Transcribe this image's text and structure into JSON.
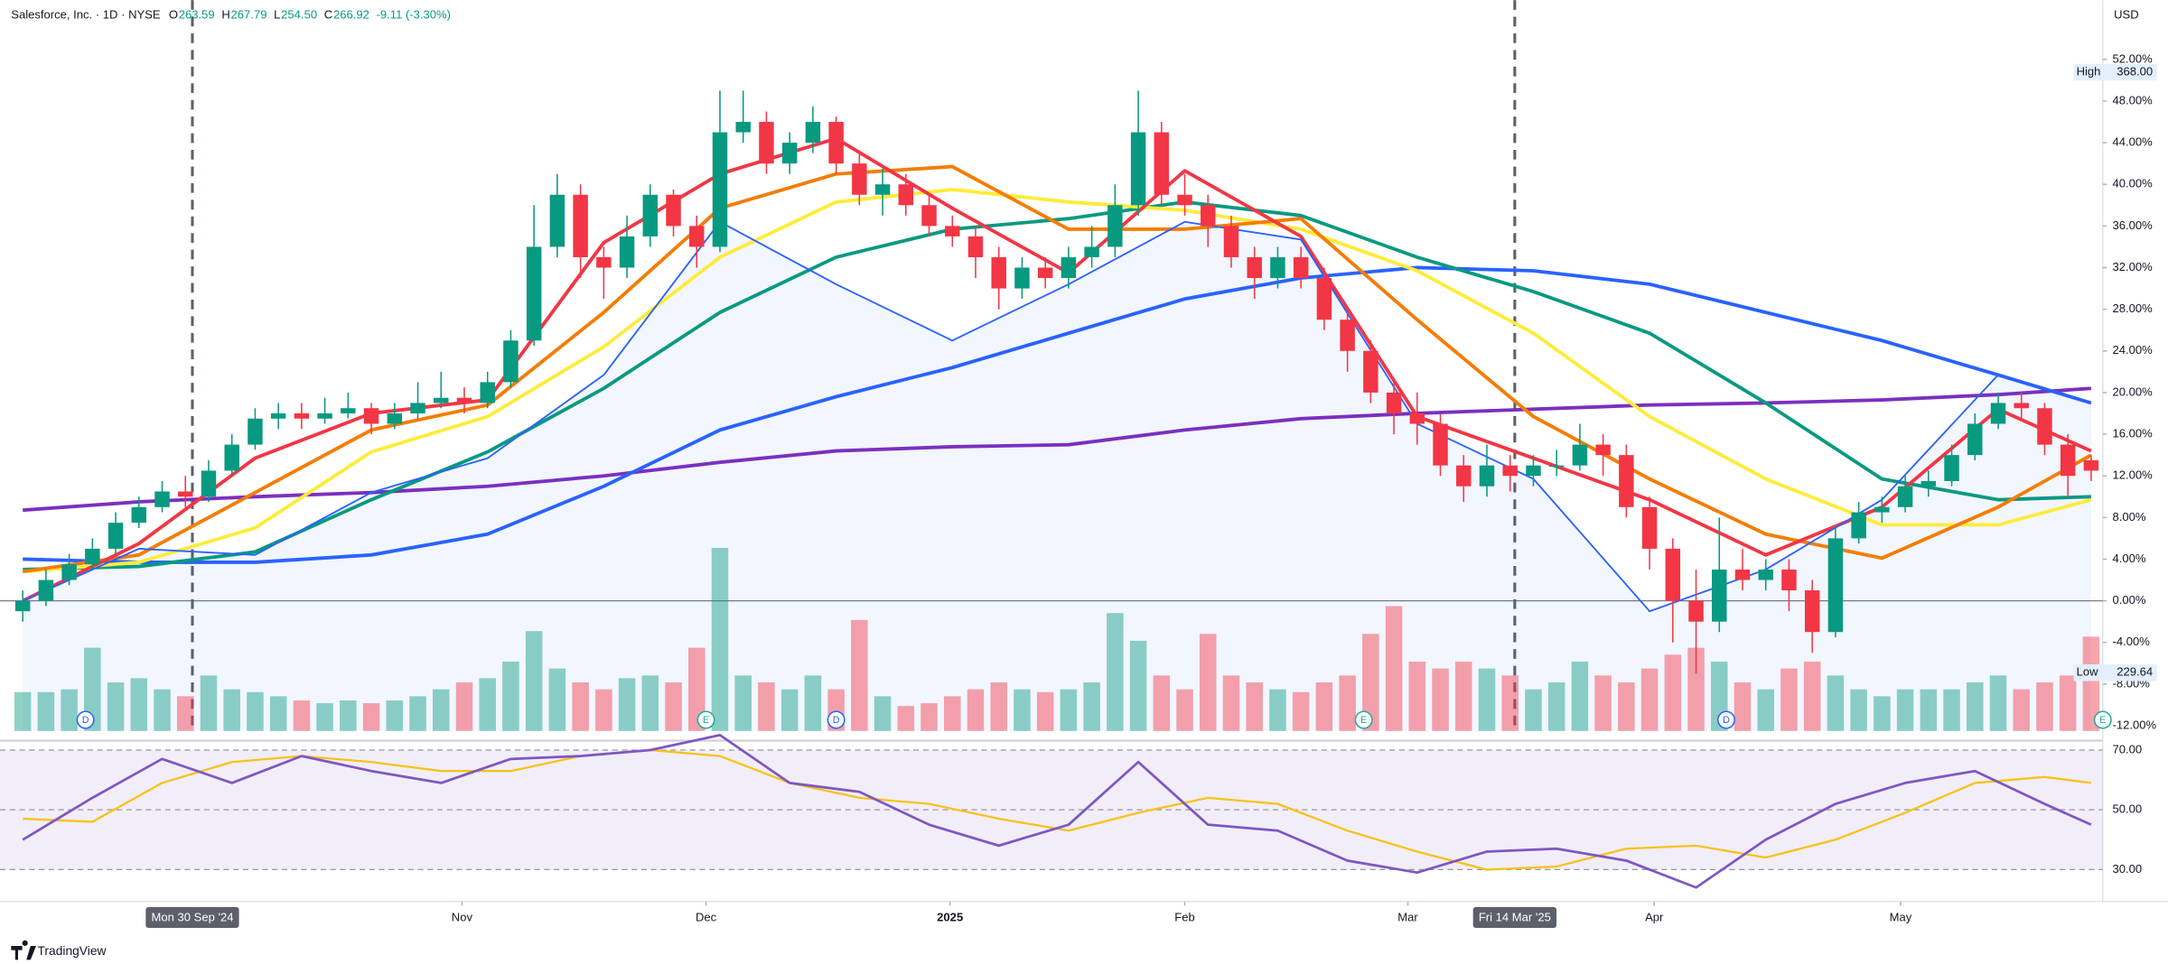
{
  "chart_data": {
    "type": "candlestick",
    "header": {
      "symbol": "Salesforce, Inc. · 1D · NYSE",
      "fields": [
        {
          "label": "O",
          "value": "263.59"
        },
        {
          "label": "H",
          "value": "267.79"
        },
        {
          "label": "L",
          "value": "254.50"
        },
        {
          "label": "C",
          "value": "266.92"
        }
      ],
      "change": "-9.11 (-3.30%)"
    },
    "currency": "USD",
    "high_label": {
      "label": "High",
      "value": "368.00"
    },
    "low_label": {
      "label": "Low",
      "value": "229.64"
    },
    "up_color": "#089981",
    "down_color": "#f23645",
    "ylim": [
      -12.5,
      57.7
    ],
    "yticks": [
      {
        "value": 52,
        "label": "52.00%"
      },
      {
        "value": 48,
        "label": "48.00%"
      },
      {
        "value": 44,
        "label": "44.00%"
      },
      {
        "value": 40,
        "label": "40.00%"
      },
      {
        "value": 36,
        "label": "36.00%"
      },
      {
        "value": 32,
        "label": "32.00%"
      },
      {
        "value": 28,
        "label": "28.00%"
      },
      {
        "value": 24,
        "label": "24.00%"
      },
      {
        "value": 20,
        "label": "20.00%"
      },
      {
        "value": 16,
        "label": "16.00%"
      },
      {
        "value": 12,
        "label": "12.00%"
      },
      {
        "value": 8,
        "label": "8.00%"
      },
      {
        "value": 4,
        "label": "4.00%"
      },
      {
        "value": 0,
        "label": "0.00%"
      },
      {
        "value": -4,
        "label": "-4.00%"
      },
      {
        "value": -8,
        "label": "-8.00%"
      },
      {
        "value": -12,
        "label": "-12.00%"
      }
    ],
    "xlim": [
      -0.5,
      89.5
    ],
    "xticks": [
      {
        "value": 7.3,
        "label": "Mon 30 Sep '24",
        "highlight": true
      },
      {
        "value": 18.9,
        "label": "Nov"
      },
      {
        "value": 29.4,
        "label": "Dec"
      },
      {
        "value": 39.9,
        "label": "2025"
      },
      {
        "value": 50,
        "label": "Feb"
      },
      {
        "value": 59.6,
        "label": "Mar"
      },
      {
        "value": 64.2,
        "label": "Fri 14 Mar '25",
        "highlight": true
      },
      {
        "value": 70.2,
        "label": "Apr"
      },
      {
        "value": 80.8,
        "label": "May"
      }
    ],
    "ohlc": [
      [
        -1,
        1,
        -2,
        0
      ],
      [
        0,
        3,
        -0.5,
        2
      ],
      [
        2,
        4.5,
        1.5,
        3.5
      ],
      [
        3.5,
        6,
        3,
        5
      ],
      [
        5,
        8.5,
        4.5,
        7.5
      ],
      [
        7.5,
        10,
        7,
        9
      ],
      [
        9,
        11.5,
        8.5,
        10.5
      ],
      [
        10.5,
        12,
        9,
        10
      ],
      [
        10,
        13.5,
        9.5,
        12.5
      ],
      [
        12.5,
        16,
        12,
        15
      ],
      [
        15,
        18.5,
        14.5,
        17.5
      ],
      [
        17.5,
        19,
        16.5,
        18
      ],
      [
        18,
        19,
        16.5,
        17.5
      ],
      [
        17.5,
        19.5,
        17,
        18
      ],
      [
        18,
        20,
        17.5,
        18.5
      ],
      [
        18.5,
        19,
        16,
        17
      ],
      [
        17,
        19,
        16.5,
        18
      ],
      [
        18,
        21,
        17.5,
        19
      ],
      [
        19,
        22,
        18.5,
        19.5
      ],
      [
        19.5,
        20.5,
        18,
        19
      ],
      [
        19,
        22,
        18.5,
        21
      ],
      [
        21,
        26,
        20.5,
        25
      ],
      [
        25,
        38,
        24.5,
        34
      ],
      [
        34,
        41,
        33,
        39
      ],
      [
        39,
        40,
        31,
        33
      ],
      [
        33,
        34,
        29,
        32
      ],
      [
        32,
        37,
        31,
        35
      ],
      [
        35,
        40,
        34,
        39
      ],
      [
        39,
        39.5,
        35,
        36
      ],
      [
        36,
        37,
        32,
        34
      ],
      [
        34,
        49,
        33.5,
        45
      ],
      [
        45,
        49,
        44,
        46
      ],
      [
        46,
        47,
        41,
        42
      ],
      [
        42,
        45,
        41,
        44
      ],
      [
        44,
        47.5,
        43,
        46
      ],
      [
        46,
        46.5,
        41,
        42
      ],
      [
        42,
        43,
        38,
        39
      ],
      [
        39,
        41.5,
        37,
        40
      ],
      [
        40,
        41,
        37,
        38
      ],
      [
        38,
        39,
        35,
        36
      ],
      [
        36,
        37,
        34,
        35
      ],
      [
        35,
        36,
        31,
        33
      ],
      [
        33,
        34,
        28,
        30
      ],
      [
        30,
        33,
        29,
        32
      ],
      [
        32,
        33,
        30,
        31
      ],
      [
        31,
        34,
        30,
        33
      ],
      [
        33,
        36,
        32,
        34
      ],
      [
        34,
        40,
        33,
        38
      ],
      [
        38,
        49,
        37,
        45
      ],
      [
        45,
        46,
        38,
        39
      ],
      [
        39,
        41,
        37,
        38
      ],
      [
        38,
        39,
        34,
        36
      ],
      [
        36,
        37,
        32,
        33
      ],
      [
        33,
        34,
        29,
        31
      ],
      [
        31,
        34,
        30,
        33
      ],
      [
        33,
        34,
        30,
        31
      ],
      [
        31,
        32,
        26,
        27
      ],
      [
        27,
        28,
        22,
        24
      ],
      [
        24,
        25,
        19,
        20
      ],
      [
        20,
        21,
        16,
        18
      ],
      [
        18,
        20,
        15,
        17
      ],
      [
        17,
        18,
        12,
        13
      ],
      [
        13,
        14,
        9.5,
        11
      ],
      [
        11,
        15,
        10,
        13
      ],
      [
        13,
        14,
        10.5,
        12
      ],
      [
        12,
        14,
        11,
        13
      ],
      [
        13,
        14.5,
        12,
        13
      ],
      [
        13,
        17,
        12.5,
        15
      ],
      [
        15,
        16,
        12,
        14
      ],
      [
        14,
        15,
        8,
        9
      ],
      [
        9,
        10,
        3,
        5
      ],
      [
        5,
        6,
        -4,
        0
      ],
      [
        0,
        3,
        -7,
        -2
      ],
      [
        -2,
        8,
        -3,
        3
      ],
      [
        3,
        5,
        1,
        2
      ],
      [
        2,
        4,
        1,
        3
      ],
      [
        3,
        4,
        -1,
        1
      ],
      [
        1,
        2,
        -5,
        -3
      ],
      [
        -3,
        7,
        -3.5,
        6
      ],
      [
        6,
        9.5,
        5.5,
        8.5
      ],
      [
        8.5,
        10,
        7.5,
        9
      ],
      [
        9,
        12,
        8.5,
        11
      ],
      [
        11,
        12.5,
        10,
        11.5
      ],
      [
        11.5,
        15,
        11,
        14
      ],
      [
        14,
        18,
        13.5,
        17
      ],
      [
        17,
        20,
        16.5,
        19
      ],
      [
        19,
        20,
        17.5,
        18.5
      ],
      [
        18.5,
        19,
        14,
        15
      ],
      [
        15,
        16,
        10,
        12
      ],
      [
        13.5,
        14,
        11.5,
        12.5
      ]
    ],
    "volume": [
      28,
      28,
      30,
      60,
      35,
      38,
      30,
      25,
      40,
      30,
      28,
      25,
      22,
      20,
      22,
      20,
      22,
      25,
      30,
      35,
      38,
      50,
      72,
      45,
      35,
      30,
      38,
      40,
      35,
      60,
      132,
      40,
      35,
      30,
      40,
      30,
      80,
      25,
      18,
      20,
      25,
      30,
      35,
      30,
      28,
      30,
      35,
      85,
      65,
      40,
      30,
      70,
      40,
      35,
      30,
      28,
      35,
      40,
      70,
      90,
      50,
      45,
      50,
      45,
      40,
      30,
      35,
      50,
      40,
      35,
      45,
      55,
      60,
      50,
      35,
      30,
      45,
      50,
      40,
      30,
      25,
      30,
      30,
      30,
      35,
      40,
      30,
      35,
      40,
      68
    ],
    "ma_x": [
      0,
      5,
      10,
      15,
      20,
      25,
      30,
      35,
      40,
      45,
      50,
      55,
      60,
      65,
      70,
      75,
      80,
      85,
      89
    ],
    "moving_averages": [
      {
        "color": "#7b2fbf",
        "width": 2.5,
        "values": [
          8.7,
          9.5,
          10,
          10.4,
          11,
          12,
          13.3,
          14.4,
          14.8,
          15,
          16.4,
          17.5,
          18,
          18.4,
          18.8,
          19,
          19.3,
          19.8,
          20.4
        ]
      },
      {
        "color": "#2962ff",
        "width": 2.5,
        "values": [
          4,
          3.7,
          3.7,
          4.4,
          6.4,
          11,
          16.4,
          19.6,
          22.4,
          25.7,
          29,
          31,
          32,
          31.7,
          30.4,
          27.7,
          25,
          21.7,
          19
        ]
      },
      {
        "color": "#089981",
        "width": 2.5,
        "values": [
          3,
          3.3,
          4.7,
          9.7,
          14.3,
          20.4,
          27.7,
          33,
          35.7,
          36.7,
          38.3,
          37,
          33,
          29.7,
          25.7,
          19,
          11.7,
          9.7,
          10
        ]
      },
      {
        "color": "#ffeb3b",
        "width": 2.5,
        "values": [
          2.8,
          3.7,
          7,
          14.3,
          17.7,
          24.4,
          33,
          38.3,
          39.5,
          38.3,
          37.5,
          35.7,
          31.7,
          25.7,
          17.7,
          11.7,
          7.3,
          7.3,
          9.7
        ]
      },
      {
        "color": "#f57c00",
        "width": 2.5,
        "values": [
          2.8,
          4.4,
          10.4,
          16.4,
          18.8,
          27.7,
          37.7,
          41,
          41.7,
          35.7,
          35.7,
          36.7,
          27,
          17.7,
          11.7,
          6.4,
          4.1,
          9,
          14
        ]
      },
      {
        "color": "#f23645",
        "width": 2.5,
        "values": [
          0,
          5.5,
          13.7,
          18,
          19.3,
          34.4,
          41,
          44.4,
          37.7,
          31.5,
          41.3,
          35,
          17.7,
          13.7,
          9.7,
          4.4,
          9,
          18.4,
          14.4
        ]
      }
    ],
    "line": {
      "color": "#2962ff",
      "values": [
        0,
        5,
        4.4,
        10.4,
        13.7,
        21.7,
        36.4,
        30.4,
        25,
        30.4,
        36.4,
        34.7,
        17,
        11.7,
        -1,
        3,
        9.7,
        21.7,
        19
      ]
    },
    "events": [
      {
        "label": "D",
        "x": 2.7
      },
      {
        "label": "E",
        "x": 29.4
      },
      {
        "label": "D",
        "x": 35
      },
      {
        "label": "E",
        "x": 57.7
      },
      {
        "label": "D",
        "x": 73.3
      },
      {
        "label": "E",
        "x": 89.5
      }
    ],
    "rsi": {
      "ylim": [
        20,
        75
      ],
      "yticks": [
        {
          "value": 70,
          "label": "70.00"
        },
        {
          "value": 50,
          "label": "50.00"
        },
        {
          "value": 30,
          "label": "30.00"
        }
      ],
      "color": "#7e57c2",
      "ma_color": "#f7c21a",
      "x": [
        0,
        3,
        6,
        9,
        12,
        15,
        18,
        21,
        24,
        27,
        30,
        33,
        36,
        39,
        42,
        45,
        48,
        51,
        54,
        57,
        60,
        63,
        66,
        69,
        72,
        75,
        78,
        81,
        84,
        87,
        89
      ],
      "values": [
        40,
        54,
        67,
        59,
        68,
        63,
        59,
        67,
        68,
        70,
        75,
        59,
        56,
        45,
        38,
        45,
        66,
        45,
        43,
        33,
        29,
        36,
        37,
        33,
        24,
        40,
        52,
        59,
        63,
        52,
        45
      ],
      "ma": [
        47,
        46,
        59,
        66,
        68,
        66,
        63,
        63,
        68,
        70,
        68,
        59,
        54,
        52,
        47,
        43,
        49,
        54,
        52,
        43,
        36,
        30,
        31,
        37,
        38,
        34,
        40,
        49,
        59,
        61,
        59
      ]
    },
    "brand": "TradingView"
  }
}
